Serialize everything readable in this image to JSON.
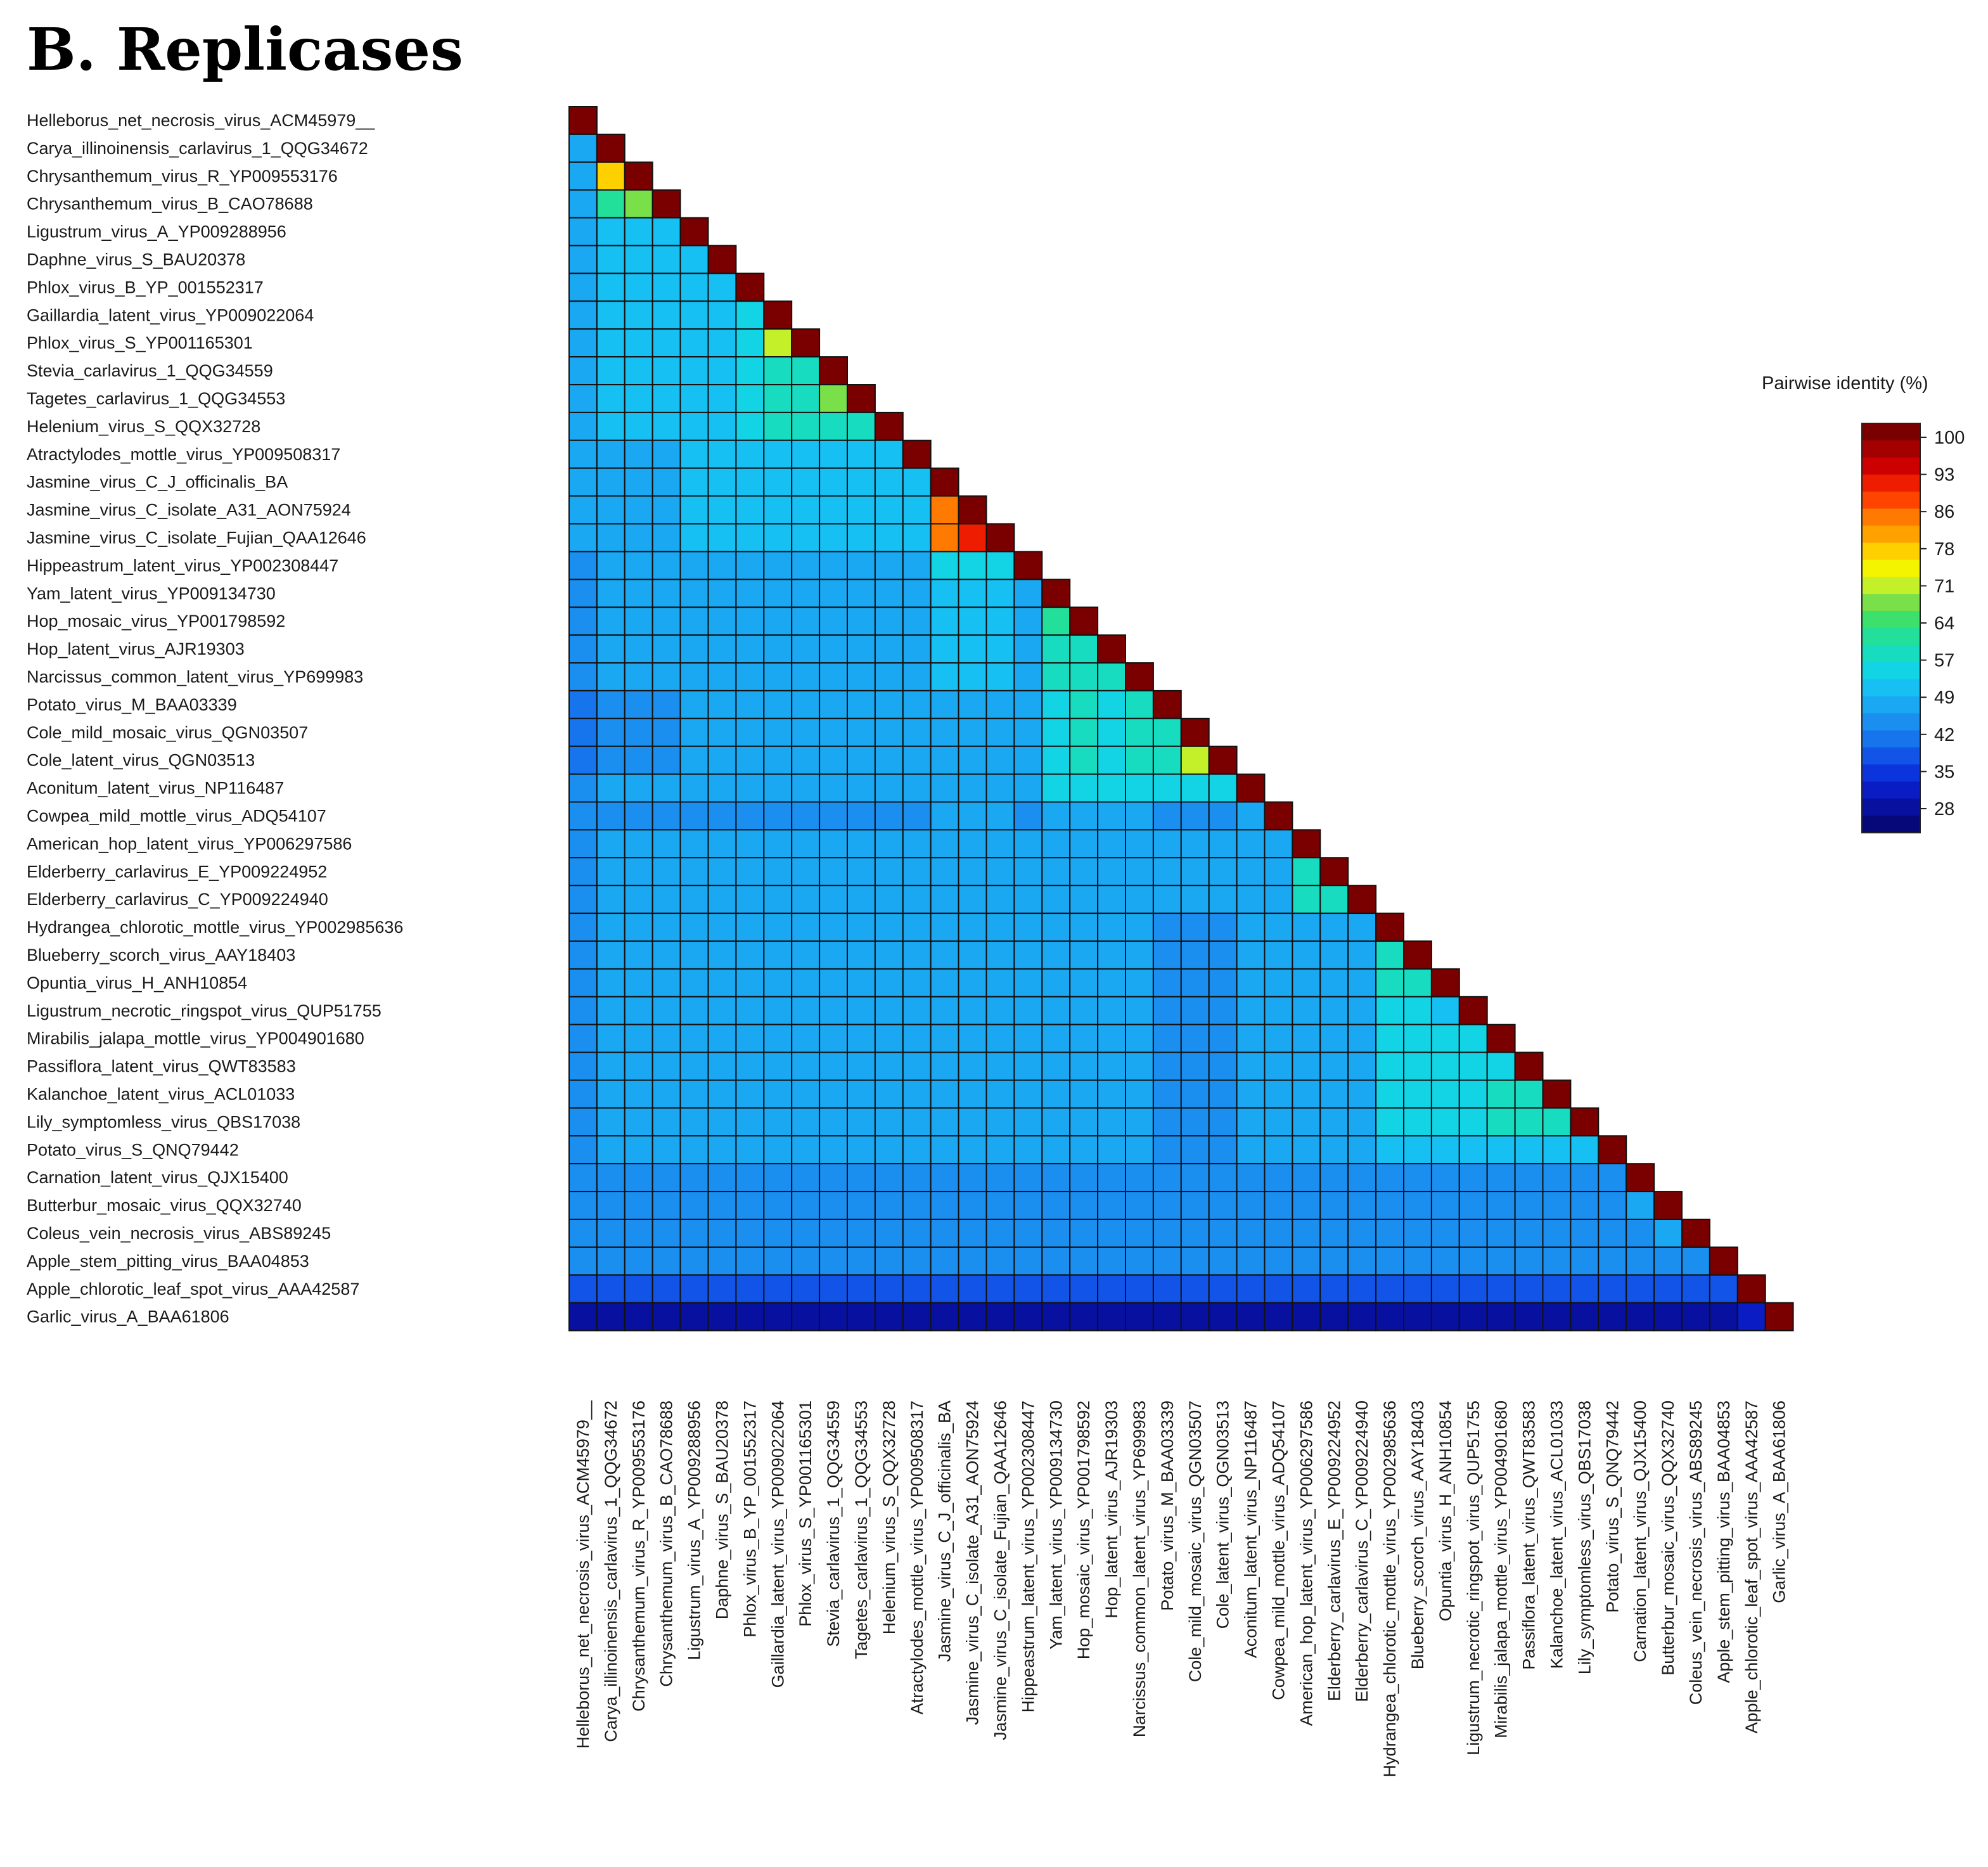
{
  "panel_title": "B. Replicases",
  "chart_data": {
    "type": "heatmap",
    "title": "",
    "layout": "lower-triangle",
    "labels": [
      "Helleborus_net_necrosis_virus_ACM45979__",
      "Carya_illinoinensis_carlavirus_1_QQG34672",
      "Chrysanthemum_virus_R_YP009553176",
      "Chrysanthemum_virus_B_CAO78688",
      "Ligustrum_virus_A_YP009288956",
      "Daphne_virus_S_BAU20378",
      "Phlox_virus_B_YP_001552317",
      "Gaillardia_latent_virus_YP009022064",
      "Phlox_virus_S_YP001165301",
      "Stevia_carlavirus_1_QQG34559",
      "Tagetes_carlavirus_1_QQG34553",
      "Helenium_virus_S_QQX32728",
      "Atractylodes_mottle_virus_YP009508317",
      "Jasmine_virus_C_J_officinalis_BA",
      "Jasmine_virus_C_isolate_A31_AON75924",
      "Jasmine_virus_C_isolate_Fujian_QAA12646",
      "Hippeastrum_latent_virus_YP002308447",
      "Yam_latent_virus_YP009134730",
      "Hop_mosaic_virus_YP001798592",
      "Hop_latent_virus_AJR19303",
      "Narcissus_common_latent_virus_YP699983",
      "Potato_virus_M_BAA03339",
      "Cole_mild_mosaic_virus_QGN03507",
      "Cole_latent_virus_QGN03513",
      "Aconitum_latent_virus_NP116487",
      "Cowpea_mild_mottle_virus_ADQ54107",
      "American_hop_latent_virus_YP006297586",
      "Elderberry_carlavirus_E_YP009224952",
      "Elderberry_carlavirus_C_YP009224940",
      "Hydrangea_chlorotic_mottle_virus_YP002985636",
      "Blueberry_scorch_virus_AAY18403",
      "Opuntia_virus_H_ANH10854",
      "Ligustrum_necrotic_ringspot_virus_QUP51755",
      "Mirabilis_jalapa_mottle_virus_YP004901680",
      "Passiflora_latent_virus_QWT83583",
      "Kalanchoe_latent_virus_ACL01033",
      "Lily_symptomless_virus_QBS17038",
      "Potato_virus_S_QNQ79442",
      "Carnation_latent_virus_QJX15400",
      "Butterbur_mosaic_virus_QQX32740",
      "Coleus_vein_necrosis_virus_ABS89245",
      "Apple_stem_pitting_virus_BAA04853",
      "Apple_chlorotic_leaf_spot_virus_AAA42587",
      "Garlic_virus_A_BAA61806"
    ],
    "values": [
      [
        100
      ],
      [
        49,
        100
      ],
      [
        49,
        76,
        100
      ],
      [
        49,
        62,
        67,
        100
      ],
      [
        48,
        50,
        50,
        50,
        100
      ],
      [
        48,
        50,
        50,
        50,
        51,
        100
      ],
      [
        48,
        50,
        50,
        50,
        51,
        51,
        100
      ],
      [
        47,
        50,
        50,
        50,
        51,
        51,
        55,
        100
      ],
      [
        48,
        50,
        50,
        50,
        51,
        51,
        55,
        69,
        100
      ],
      [
        48,
        50,
        50,
        50,
        51,
        51,
        55,
        57,
        57,
        100
      ],
      [
        48,
        50,
        50,
        50,
        51,
        51,
        55,
        57,
        57,
        67,
        100
      ],
      [
        48,
        50,
        50,
        50,
        51,
        51,
        55,
        56,
        56,
        57,
        57,
        100
      ],
      [
        47,
        49,
        49,
        49,
        50,
        50,
        51,
        51,
        51,
        51,
        51,
        51,
        100
      ],
      [
        47,
        49,
        49,
        49,
        50,
        50,
        50,
        50,
        50,
        50,
        50,
        50,
        50,
        100
      ],
      [
        47,
        49,
        49,
        49,
        50,
        50,
        50,
        50,
        50,
        50,
        50,
        50,
        50,
        82,
        100
      ],
      [
        47,
        49,
        49,
        49,
        50,
        50,
        50,
        50,
        50,
        50,
        50,
        50,
        50,
        82,
        88,
        100
      ],
      [
        44,
        47,
        47,
        47,
        48,
        48,
        48,
        48,
        48,
        48,
        48,
        48,
        48,
        53,
        53,
        53,
        100
      ],
      [
        45,
        48,
        48,
        48,
        49,
        49,
        49,
        49,
        49,
        49,
        49,
        49,
        49,
        50,
        50,
        50,
        49,
        100
      ],
      [
        45,
        48,
        48,
        48,
        49,
        49,
        49,
        49,
        49,
        49,
        49,
        49,
        49,
        50,
        50,
        50,
        49,
        62,
        100
      ],
      [
        45,
        48,
        48,
        48,
        49,
        49,
        49,
        49,
        49,
        49,
        49,
        49,
        49,
        50,
        50,
        50,
        49,
        57,
        58,
        100
      ],
      [
        45,
        48,
        48,
        48,
        49,
        49,
        49,
        49,
        49,
        49,
        49,
        49,
        49,
        50,
        50,
        50,
        49,
        56,
        57,
        56,
        100
      ],
      [
        43,
        46,
        46,
        46,
        47,
        47,
        47,
        47,
        47,
        47,
        47,
        47,
        47,
        48,
        48,
        48,
        47,
        55,
        56,
        55,
        56,
        100
      ],
      [
        43,
        46,
        46,
        46,
        47,
        47,
        47,
        47,
        47,
        47,
        47,
        47,
        47,
        48,
        48,
        48,
        47,
        55,
        56,
        55,
        56,
        56,
        100
      ],
      [
        43,
        46,
        46,
        46,
        47,
        47,
        47,
        47,
        47,
        47,
        47,
        47,
        47,
        48,
        48,
        48,
        47,
        55,
        56,
        55,
        56,
        56,
        69,
        100
      ],
      [
        44,
        47,
        47,
        47,
        48,
        48,
        48,
        48,
        48,
        48,
        48,
        48,
        48,
        49,
        49,
        49,
        48,
        55,
        55,
        55,
        55,
        55,
        55,
        55,
        100
      ],
      [
        44,
        46,
        46,
        46,
        46,
        45,
        46,
        46,
        46,
        46,
        46,
        46,
        46,
        47,
        47,
        47,
        46,
        47,
        47,
        47,
        47,
        46,
        46,
        46,
        48,
        100
      ],
      [
        46,
        48,
        48,
        48,
        48,
        48,
        48,
        48,
        48,
        48,
        48,
        48,
        48,
        48,
        48,
        48,
        48,
        48,
        48,
        48,
        48,
        47,
        47,
        47,
        48,
        48,
        100
      ],
      [
        46,
        48,
        48,
        48,
        48,
        48,
        48,
        48,
        48,
        48,
        48,
        48,
        48,
        48,
        48,
        48,
        48,
        48,
        48,
        48,
        48,
        47,
        47,
        47,
        48,
        48,
        58,
        100
      ],
      [
        46,
        48,
        48,
        48,
        48,
        48,
        48,
        48,
        48,
        48,
        48,
        48,
        48,
        48,
        48,
        48,
        48,
        48,
        48,
        48,
        48,
        47,
        47,
        47,
        48,
        48,
        56,
        58,
        100
      ],
      [
        45,
        47,
        47,
        47,
        47,
        47,
        47,
        47,
        47,
        47,
        47,
        47,
        47,
        47,
        47,
        47,
        47,
        47,
        47,
        47,
        47,
        46,
        46,
        46,
        47,
        47,
        49,
        49,
        49,
        100
      ],
      [
        45,
        47,
        47,
        47,
        47,
        47,
        47,
        47,
        47,
        47,
        47,
        47,
        47,
        47,
        47,
        47,
        47,
        47,
        47,
        47,
        47,
        46,
        46,
        46,
        47,
        47,
        49,
        49,
        49,
        56,
        100
      ],
      [
        45,
        47,
        47,
        47,
        47,
        47,
        47,
        47,
        47,
        47,
        47,
        47,
        47,
        47,
        47,
        47,
        47,
        47,
        47,
        47,
        47,
        46,
        46,
        46,
        47,
        47,
        49,
        49,
        49,
        56,
        56,
        100
      ],
      [
        45,
        47,
        47,
        47,
        47,
        47,
        47,
        47,
        47,
        47,
        47,
        47,
        47,
        47,
        47,
        47,
        47,
        47,
        47,
        47,
        47,
        46,
        46,
        46,
        47,
        47,
        49,
        49,
        49,
        55,
        55,
        51,
        100
      ],
      [
        45,
        47,
        47,
        47,
        47,
        47,
        47,
        47,
        47,
        47,
        47,
        47,
        47,
        47,
        47,
        47,
        47,
        47,
        47,
        47,
        47,
        46,
        46,
        46,
        47,
        47,
        49,
        49,
        49,
        55,
        55,
        55,
        55,
        100
      ],
      [
        45,
        47,
        47,
        47,
        47,
        47,
        47,
        47,
        47,
        47,
        47,
        47,
        47,
        47,
        47,
        47,
        47,
        47,
        47,
        47,
        47,
        46,
        46,
        46,
        47,
        47,
        49,
        49,
        49,
        55,
        55,
        55,
        55,
        55,
        100
      ],
      [
        45,
        47,
        47,
        47,
        47,
        47,
        47,
        47,
        47,
        47,
        47,
        47,
        47,
        47,
        47,
        47,
        47,
        47,
        47,
        47,
        47,
        46,
        46,
        46,
        47,
        47,
        49,
        49,
        49,
        55,
        55,
        55,
        55,
        56,
        56,
        100
      ],
      [
        45,
        47,
        47,
        47,
        47,
        47,
        47,
        47,
        47,
        47,
        47,
        47,
        47,
        47,
        47,
        47,
        47,
        47,
        47,
        47,
        47,
        46,
        46,
        46,
        47,
        47,
        49,
        49,
        49,
        55,
        55,
        55,
        55,
        56,
        57,
        57,
        100
      ],
      [
        45,
        47,
        47,
        47,
        47,
        47,
        47,
        47,
        47,
        47,
        47,
        47,
        47,
        47,
        47,
        47,
        47,
        47,
        47,
        47,
        47,
        46,
        46,
        46,
        47,
        47,
        48,
        48,
        48,
        52,
        52,
        52,
        52,
        52,
        52,
        52,
        52,
        100
      ],
      [
        44,
        45,
        45,
        45,
        45,
        45,
        45,
        45,
        45,
        45,
        45,
        45,
        45,
        45,
        45,
        45,
        45,
        45,
        45,
        45,
        45,
        44,
        44,
        44,
        45,
        45,
        45,
        45,
        45,
        45,
        45,
        45,
        45,
        45,
        45,
        45,
        45,
        45,
        100
      ],
      [
        44,
        45,
        45,
        45,
        45,
        45,
        45,
        45,
        45,
        45,
        45,
        45,
        45,
        45,
        45,
        45,
        45,
        45,
        45,
        45,
        45,
        44,
        44,
        44,
        45,
        45,
        45,
        45,
        45,
        45,
        45,
        45,
        45,
        45,
        45,
        45,
        45,
        45,
        47,
        100
      ],
      [
        45,
        46,
        46,
        46,
        45,
        45,
        46,
        46,
        46,
        46,
        46,
        46,
        46,
        46,
        46,
        46,
        46,
        46,
        46,
        46,
        46,
        45,
        45,
        45,
        46,
        46,
        46,
        46,
        46,
        46,
        46,
        46,
        46,
        46,
        46,
        46,
        46,
        46,
        46,
        48,
        100
      ],
      [
        44,
        45,
        45,
        45,
        45,
        45,
        45,
        45,
        45,
        45,
        45,
        45,
        45,
        45,
        45,
        45,
        45,
        45,
        45,
        45,
        45,
        44,
        44,
        44,
        45,
        45,
        45,
        45,
        45,
        45,
        45,
        45,
        45,
        45,
        45,
        45,
        45,
        45,
        45,
        45,
        45,
        100
      ],
      [
        38,
        38,
        38,
        38,
        38,
        38,
        38,
        38,
        38,
        38,
        38,
        38,
        38,
        38,
        38,
        38,
        38,
        38,
        38,
        38,
        38,
        38,
        38,
        38,
        38,
        38,
        38,
        38,
        38,
        38,
        38,
        38,
        38,
        38,
        38,
        38,
        38,
        38,
        38,
        38,
        38,
        38,
        100
      ],
      [
        30,
        30,
        30,
        30,
        30,
        30,
        30,
        30,
        30,
        30,
        30,
        30,
        30,
        30,
        30,
        30,
        30,
        30,
        30,
        30,
        30,
        30,
        30,
        30,
        30,
        30,
        30,
        30,
        30,
        30,
        30,
        30,
        30,
        30,
        30,
        30,
        30,
        30,
        30,
        30,
        30,
        30,
        32,
        100
      ]
    ],
    "legend": {
      "title": "Pairwise identity (%)",
      "ticks": [
        "100",
        "93",
        "86",
        "78",
        "71",
        "64",
        "57",
        "49",
        "42",
        "35",
        "28"
      ],
      "placement": "right"
    },
    "colors": [
      "#7a0000",
      "#a50000",
      "#cc0000",
      "#ee1c00",
      "#ff4400",
      "#ff7a00",
      "#ffa200",
      "#ffd000",
      "#f4f400",
      "#c4f02a",
      "#7ae04a",
      "#3ce06a",
      "#22e09a",
      "#18dcc0",
      "#12d4e4",
      "#16c0f2",
      "#1aa8f2",
      "#1a8ff0",
      "#1674ec",
      "#1254e8",
      "#0c34dc",
      "#0a1cc4",
      "#0810a0",
      "#06087a"
    ]
  }
}
